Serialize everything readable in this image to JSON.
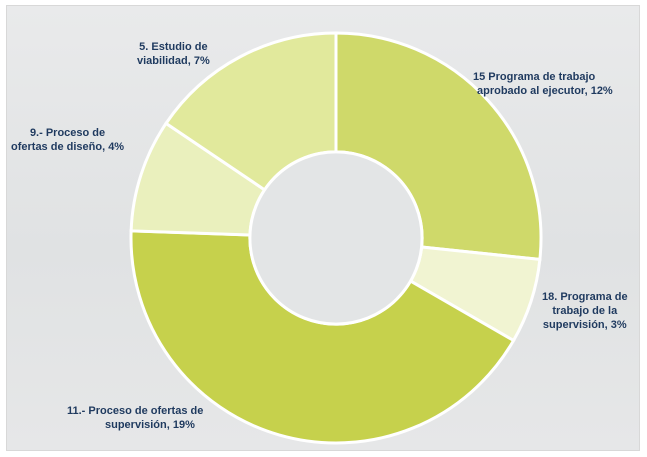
{
  "chart_data": {
    "type": "pie",
    "variant": "donut",
    "slices": [
      {
        "label": "15 Programa de trabajo aprobado al ejecutor, 12%",
        "line1": "15   Programa de trabajo",
        "line2": "aprobado al ejecutor, 12%",
        "line3": "",
        "value": 12,
        "color": "#cfd96a"
      },
      {
        "label": "18. Programa de trabajo de la supervisión, 3%",
        "line1": "18. Programa de",
        "line2": "trabajo de la",
        "line3": "supervisión, 3%",
        "value": 3,
        "color": "#f1f4d2"
      },
      {
        "label": "11.- Proceso de ofertas de supervisión, 19%",
        "line1": "11.-   Proceso de ofertas de",
        "line2": "supervisión, 19%",
        "line3": "",
        "value": 19,
        "color": "#c6d14c"
      },
      {
        "label": "9.- Proceso de ofertas de diseño, 4%",
        "line1": "9.-    Proceso de",
        "line2": "ofertas de diseño, 4%",
        "line3": "",
        "value": 4,
        "color": "#eaf0bd"
      },
      {
        "label": "5. Estudio de viabilidad, 7%",
        "line1": "5.   Estudio de",
        "line2": "viabilidad, 7%",
        "line3": "",
        "value": 7,
        "color": "#e1e99c"
      }
    ],
    "start_angle_deg": 0,
    "direction": "clockwise",
    "hole_ratio": 0.42,
    "legend": "none",
    "title": ""
  }
}
